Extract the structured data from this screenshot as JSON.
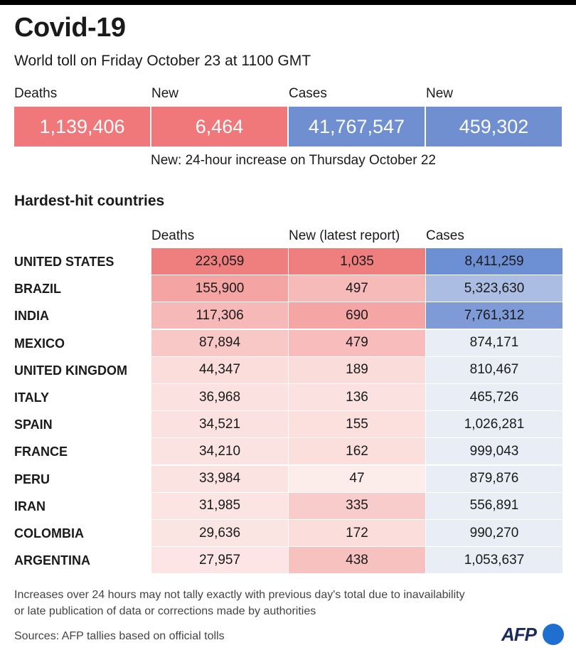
{
  "header": {
    "title": "Covid-19",
    "subtitle": "World toll on Friday October 23 at 1100 GMT"
  },
  "summary": {
    "tiles": [
      {
        "label": "Deaths",
        "value": "1,139,406",
        "color": "#f0787a"
      },
      {
        "label": "New",
        "value": "6,464",
        "color": "#f0787a"
      },
      {
        "label": "Cases",
        "value": "41,767,547",
        "color": "#6f8fd0"
      },
      {
        "label": "New",
        "value": "459,302",
        "color": "#6f8fd0"
      }
    ],
    "note": "New: 24-hour increase on Thursday October 22"
  },
  "section_title": "Hardest-hit countries",
  "colors": {
    "deaths_scale": "#ef7f7f",
    "cases_scale": "#6d8fd3",
    "cases_light": "#e9edf6"
  },
  "chart_data": {
    "type": "table",
    "columns": [
      "Deaths",
      "New (latest report)",
      "Cases"
    ],
    "rows": [
      {
        "country": "UNITED STATES",
        "deaths": 223059,
        "new": 1035,
        "cases": 8411259
      },
      {
        "country": "BRAZIL",
        "deaths": 155900,
        "new": 497,
        "cases": 5323630
      },
      {
        "country": "INDIA",
        "deaths": 117306,
        "new": 690,
        "cases": 7761312
      },
      {
        "country": "MEXICO",
        "deaths": 87894,
        "new": 479,
        "cases": 874171
      },
      {
        "country": "UNITED KINGDOM",
        "deaths": 44347,
        "new": 189,
        "cases": 810467
      },
      {
        "country": "ITALY",
        "deaths": 36968,
        "new": 136,
        "cases": 465726
      },
      {
        "country": "SPAIN",
        "deaths": 34521,
        "new": 155,
        "cases": 1026281
      },
      {
        "country": "FRANCE",
        "deaths": 34210,
        "new": 162,
        "cases": 999043
      },
      {
        "country": "PERU",
        "deaths": 33984,
        "new": 47,
        "cases": 879876
      },
      {
        "country": "IRAN",
        "deaths": 31985,
        "new": 335,
        "cases": 556891
      },
      {
        "country": "COLOMBIA",
        "deaths": 29636,
        "new": 172,
        "cases": 990270
      },
      {
        "country": "ARGENTINA",
        "deaths": 27957,
        "new": 438,
        "cases": 1053637
      }
    ]
  },
  "footer": {
    "caveat_line1": "Increases over 24 hours may not tally exactly with previous day's total due to inavailability",
    "caveat_line2": "or late publication of data or corrections made by authorities",
    "sources": "Sources: AFP tallies based on official tolls",
    "logo": "AFP"
  }
}
